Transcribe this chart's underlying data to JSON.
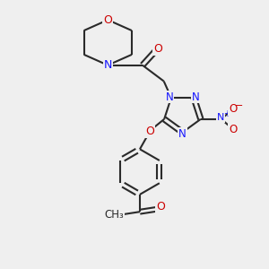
{
  "bg_color": "#efefef",
  "bond_color": "#2a2a2a",
  "bond_width": 1.5,
  "N_color": "#1414ff",
  "O_color": "#cc0000",
  "C_color": "#2a2a2a",
  "fig_size": [
    3.0,
    3.0
  ],
  "dpi": 100,
  "xlim": [
    0,
    10
  ],
  "ylim": [
    0,
    10
  ]
}
